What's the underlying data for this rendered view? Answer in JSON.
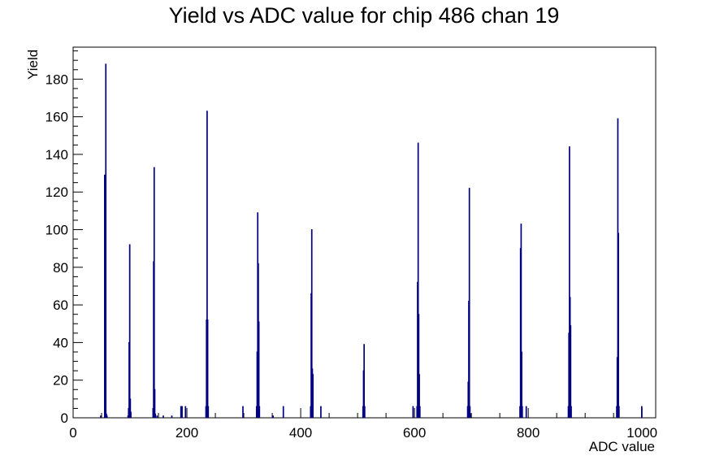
{
  "chart_data": {
    "type": "histogram",
    "title": "Yield vs ADC value for chip 486 chan 19",
    "xlabel": "ADC value",
    "ylabel": "Yield",
    "xlim": [
      0,
      1024
    ],
    "ylim": [
      0,
      197
    ],
    "x_ticks": [
      0,
      200,
      400,
      600,
      800,
      1000
    ],
    "y_ticks": [
      0,
      20,
      40,
      60,
      80,
      100,
      120,
      140,
      160,
      180
    ],
    "grid": false,
    "legend": "none",
    "line_color": "#000080",
    "bin_width": 1,
    "bins": [
      [
        48,
        1
      ],
      [
        55,
        129
      ],
      [
        56,
        20
      ],
      [
        57,
        188
      ],
      [
        58,
        2
      ],
      [
        59,
        1
      ],
      [
        96,
        1
      ],
      [
        97,
        5
      ],
      [
        98,
        40
      ],
      [
        99,
        92
      ],
      [
        100,
        10
      ],
      [
        101,
        3
      ],
      [
        140,
        5
      ],
      [
        141,
        83
      ],
      [
        142,
        133
      ],
      [
        143,
        15
      ],
      [
        144,
        2
      ],
      [
        147,
        1
      ],
      [
        158,
        1
      ],
      [
        173,
        1
      ],
      [
        189,
        6
      ],
      [
        191,
        6
      ],
      [
        197,
        6
      ],
      [
        233,
        6
      ],
      [
        234,
        52
      ],
      [
        235,
        163
      ],
      [
        236,
        52
      ],
      [
        237,
        6
      ],
      [
        298,
        6
      ],
      [
        322,
        6
      ],
      [
        323,
        35
      ],
      [
        324,
        109
      ],
      [
        325,
        82
      ],
      [
        326,
        51
      ],
      [
        327,
        6
      ],
      [
        350,
        1
      ],
      [
        351,
        1
      ],
      [
        369,
        6
      ],
      [
        417,
        6
      ],
      [
        418,
        66
      ],
      [
        419,
        100
      ],
      [
        420,
        26
      ],
      [
        421,
        23
      ],
      [
        435,
        6
      ],
      [
        509,
        6
      ],
      [
        510,
        25
      ],
      [
        511,
        39
      ],
      [
        512,
        6
      ],
      [
        597,
        6
      ],
      [
        604,
        6
      ],
      [
        605,
        72
      ],
      [
        606,
        146
      ],
      [
        607,
        55
      ],
      [
        608,
        23
      ],
      [
        609,
        6
      ],
      [
        693,
        6
      ],
      [
        694,
        19
      ],
      [
        695,
        62
      ],
      [
        696,
        122
      ],
      [
        697,
        6
      ],
      [
        698,
        2
      ],
      [
        785,
        6
      ],
      [
        786,
        90
      ],
      [
        787,
        103
      ],
      [
        788,
        35
      ],
      [
        789,
        6
      ],
      [
        796,
        6
      ],
      [
        870,
        6
      ],
      [
        871,
        45
      ],
      [
        872,
        144
      ],
      [
        873,
        64
      ],
      [
        874,
        49
      ],
      [
        875,
        6
      ],
      [
        955,
        6
      ],
      [
        956,
        32
      ],
      [
        957,
        159
      ],
      [
        958,
        98
      ],
      [
        959,
        6
      ],
      [
        999,
        6
      ]
    ]
  }
}
